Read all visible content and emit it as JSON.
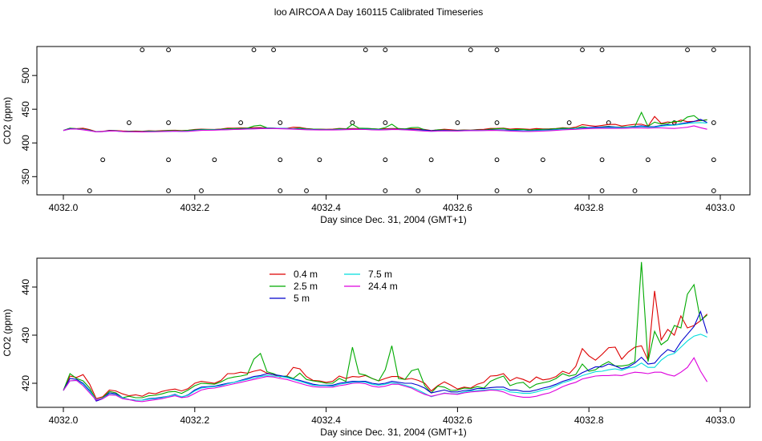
{
  "title": "loo AIRCOA A  Day 160115  Calibrated Timeseries",
  "colors": {
    "0.4 m": "#dd0000",
    "2.5 m": "#00aa00",
    "5 m": "#0000cc",
    "7.5 m": "#00dddd",
    "24.4 m": "#dd00dd"
  },
  "chart_data": [
    {
      "type": "line",
      "panel": "top",
      "xlabel": "Day since Dec. 31, 2004 (GMT+1)",
      "ylabel": "CO2 (ppm)",
      "xlim": [
        4032.0,
        4033.0
      ],
      "ylim": [
        323,
        543
      ],
      "x_ticks": [
        "4032.0",
        "4032.2",
        "4032.4",
        "4032.6",
        "4032.8",
        "4033.0"
      ],
      "y_ticks": [
        "350",
        "400",
        "450",
        "500"
      ],
      "markers": {
        "y538": [
          4032.12,
          4032.16,
          4032.29,
          4032.32,
          4032.46,
          4032.49,
          4032.62,
          4032.66,
          4032.79,
          4032.82,
          4032.95,
          4032.99
        ],
        "y430": [
          4032.1,
          4032.16,
          4032.27,
          4032.33,
          4032.44,
          4032.49,
          4032.6,
          4032.66,
          4032.77,
          4032.83,
          4032.93,
          4032.99
        ],
        "y375": [
          4032.06,
          4032.16,
          4032.23,
          4032.33,
          4032.39,
          4032.49,
          4032.56,
          4032.66,
          4032.73,
          4032.82,
          4032.89,
          4032.99
        ],
        "y329": [
          4032.04,
          4032.16,
          4032.21,
          4032.33,
          4032.37,
          4032.49,
          4032.54,
          4032.66,
          4032.71,
          4032.82,
          4032.87,
          4032.99
        ]
      }
    },
    {
      "type": "line",
      "panel": "bottom",
      "xlabel": "Day since Dec. 31, 2004 (GMT+1)",
      "ylabel": "CO2 (ppm)",
      "xlim": [
        4032.0,
        4033.0
      ],
      "ylim": [
        415,
        446
      ],
      "x_ticks": [
        "4032.0",
        "4032.2",
        "4032.4",
        "4032.6",
        "4032.8",
        "4033.0"
      ],
      "y_ticks": [
        "420",
        "430",
        "440"
      ],
      "legend_position": "top-left",
      "x": [
        4032.0,
        4032.01,
        4032.02,
        4032.03,
        4032.04,
        4032.05,
        4032.06,
        4032.07,
        4032.08,
        4032.09,
        4032.1,
        4032.11,
        4032.12,
        4032.13,
        4032.14,
        4032.15,
        4032.16,
        4032.17,
        4032.18,
        4032.19,
        4032.2,
        4032.21,
        4032.22,
        4032.23,
        4032.24,
        4032.25,
        4032.26,
        4032.27,
        4032.28,
        4032.29,
        4032.3,
        4032.31,
        4032.32,
        4032.33,
        4032.34,
        4032.35,
        4032.36,
        4032.37,
        4032.38,
        4032.39,
        4032.4,
        4032.41,
        4032.42,
        4032.43,
        4032.44,
        4032.45,
        4032.46,
        4032.47,
        4032.48,
        4032.49,
        4032.5,
        4032.51,
        4032.52,
        4032.53,
        4032.54,
        4032.55,
        4032.56,
        4032.57,
        4032.58,
        4032.59,
        4032.6,
        4032.61,
        4032.62,
        4032.63,
        4032.64,
        4032.65,
        4032.66,
        4032.67,
        4032.68,
        4032.69,
        4032.7,
        4032.71,
        4032.72,
        4032.73,
        4032.74,
        4032.75,
        4032.76,
        4032.77,
        4032.78,
        4032.79,
        4032.8,
        4032.81,
        4032.82,
        4032.83,
        4032.84,
        4032.85,
        4032.86,
        4032.87,
        4032.88,
        4032.89,
        4032.9,
        4032.91,
        4032.92,
        4032.93,
        4032.94,
        4032.95,
        4032.96,
        4032.97,
        4032.98
      ],
      "series": [
        {
          "name": "0.4 m",
          "values": [
            418.5,
            421.5,
            421.2,
            421.8,
            419.8,
            416.8,
            417.2,
            418.6,
            418.4,
            417.8,
            417.4,
            417.6,
            417.3,
            418.0,
            417.8,
            418.3,
            418.6,
            418.8,
            418.4,
            418.9,
            420.0,
            420.4,
            420.2,
            420.0,
            420.6,
            422.0,
            422.0,
            422.3,
            422.1,
            422.5,
            422.8,
            422.1,
            421.8,
            421.3,
            421.5,
            423.3,
            423.0,
            421.4,
            420.6,
            420.5,
            420.2,
            420.4,
            421.5,
            421.0,
            421.4,
            421.3,
            421.6,
            421.0,
            420.5,
            421.0,
            421.4,
            421.4,
            420.8,
            421.0,
            420.6,
            420.0,
            418.4,
            419.5,
            420.3,
            419.6,
            418.8,
            419.2,
            419.0,
            419.8,
            420.2,
            421.5,
            421.6,
            422.0,
            420.5,
            421.2,
            420.8,
            420.2,
            421.3,
            420.7,
            420.9,
            421.4,
            422.5,
            422.0,
            423.5,
            427.2,
            425.7,
            424.8,
            426.0,
            427.4,
            427.5,
            425.0,
            426.5,
            427.5,
            427.8,
            424.8,
            439.2,
            429.0,
            431.2,
            430.0,
            434.0,
            431.5,
            432.0,
            433.0,
            434.4
          ]
        },
        {
          "name": "2.5 m",
          "values": [
            418.5,
            422.0,
            421.0,
            420.5,
            419.0,
            416.5,
            417.0,
            418.3,
            418.0,
            417.0,
            417.3,
            417.0,
            417.0,
            417.4,
            417.5,
            417.8,
            418.2,
            418.3,
            417.9,
            418.6,
            419.5,
            420.0,
            419.9,
            419.8,
            420.3,
            421.0,
            421.3,
            421.5,
            421.8,
            425.0,
            426.2,
            422.4,
            422.0,
            421.4,
            421.5,
            421.0,
            422.1,
            420.8,
            420.5,
            420.3,
            420.0,
            420.0,
            421.0,
            420.4,
            427.5,
            422.0,
            421.7,
            421.0,
            420.5,
            422.8,
            427.8,
            421.0,
            420.8,
            422.6,
            423.0,
            419.5,
            418.0,
            419.4,
            419.2,
            418.5,
            418.6,
            419.0,
            418.9,
            419.3,
            419.0,
            420.4,
            421.0,
            421.5,
            419.5,
            420.0,
            420.2,
            419.0,
            419.8,
            420.1,
            420.4,
            421.0,
            422.0,
            421.5,
            421.8,
            424.0,
            422.5,
            422.8,
            423.8,
            424.5,
            423.6,
            423.6,
            423.8,
            424.5,
            445.2,
            424.5,
            430.8,
            428.0,
            429.0,
            432.0,
            431.5,
            438.5,
            440.5,
            433.0,
            434.2
          ]
        },
        {
          "name": "5 m",
          "values": [
            418.5,
            421.0,
            420.8,
            420.0,
            418.5,
            416.3,
            416.8,
            418.0,
            417.8,
            417.0,
            416.6,
            416.5,
            416.5,
            416.8,
            416.9,
            417.1,
            417.3,
            417.7,
            417.1,
            417.6,
            418.6,
            419.2,
            419.3,
            419.4,
            419.7,
            420.0,
            420.2,
            420.6,
            421.0,
            421.4,
            421.6,
            422.0,
            421.8,
            421.6,
            421.3,
            420.9,
            420.6,
            420.2,
            419.8,
            419.6,
            419.6,
            419.6,
            420.0,
            420.2,
            420.4,
            420.4,
            420.4,
            420.0,
            419.8,
            420.0,
            420.4,
            420.2,
            420.0,
            420.0,
            419.6,
            419.0,
            418.0,
            418.3,
            418.6,
            418.2,
            418.2,
            418.5,
            418.6,
            418.9,
            418.9,
            419.1,
            419.2,
            419.2,
            418.6,
            418.6,
            418.3,
            418.3,
            418.6,
            419.0,
            419.3,
            419.8,
            420.4,
            420.8,
            421.4,
            422.2,
            422.8,
            423.4,
            423.4,
            424.0,
            423.6,
            423.0,
            423.4,
            424.2,
            425.4,
            424.0,
            424.2,
            425.8,
            427.0,
            426.5,
            428.6,
            430.2,
            431.8,
            434.9,
            430.4
          ]
        },
        {
          "name": "7.5 m",
          "values": [
            418.5,
            420.5,
            420.6,
            419.8,
            418.3,
            416.6,
            416.9,
            417.7,
            417.6,
            417.0,
            416.6,
            416.5,
            416.5,
            416.7,
            416.8,
            417.0,
            417.3,
            417.6,
            417.2,
            417.5,
            418.4,
            419.0,
            419.2,
            419.3,
            419.5,
            419.9,
            420.2,
            420.5,
            420.8,
            421.1,
            421.4,
            421.6,
            421.5,
            421.4,
            421.2,
            420.8,
            420.4,
            420.0,
            419.6,
            419.5,
            419.5,
            419.4,
            419.8,
            420.0,
            420.2,
            420.3,
            420.2,
            419.8,
            419.6,
            419.8,
            420.1,
            419.9,
            419.6,
            419.2,
            418.6,
            417.9,
            417.2,
            417.6,
            418.0,
            417.8,
            417.8,
            418.2,
            418.4,
            418.5,
            418.6,
            418.7,
            418.7,
            418.7,
            418.2,
            418.1,
            417.9,
            417.9,
            418.2,
            418.6,
            418.9,
            419.5,
            420.1,
            420.5,
            421.0,
            421.6,
            422.0,
            422.4,
            422.5,
            422.8,
            423.0,
            422.7,
            423.2,
            423.4,
            424.2,
            423.3,
            423.3,
            424.8,
            425.8,
            426.2,
            427.5,
            428.8,
            429.8,
            430.2,
            429.6
          ]
        },
        {
          "name": "24.4 m",
          "values": [
            418.5,
            420.5,
            420.6,
            419.5,
            418.0,
            416.5,
            416.8,
            417.6,
            417.5,
            416.8,
            416.6,
            416.3,
            416.2,
            416.4,
            416.6,
            416.8,
            417.1,
            417.4,
            417.0,
            417.2,
            417.9,
            418.6,
            418.9,
            419.0,
            419.3,
            419.6,
            419.9,
            420.2,
            420.5,
            420.8,
            421.1,
            421.4,
            421.3,
            421.0,
            420.8,
            420.4,
            420.0,
            419.6,
            419.3,
            419.2,
            419.2,
            419.2,
            419.5,
            419.7,
            420.0,
            420.1,
            419.9,
            419.4,
            419.2,
            419.4,
            419.8,
            419.8,
            419.4,
            419.0,
            418.3,
            417.7,
            417.3,
            417.6,
            417.9,
            417.8,
            417.7,
            418.0,
            418.2,
            418.3,
            418.4,
            418.6,
            418.5,
            418.2,
            417.6,
            417.3,
            417.1,
            417.1,
            417.3,
            417.7,
            418.0,
            418.6,
            419.3,
            419.8,
            420.2,
            420.9,
            421.2,
            421.5,
            421.6,
            421.6,
            421.7,
            421.6,
            422.0,
            422.3,
            422.2,
            422.0,
            422.3,
            422.3,
            421.8,
            421.5,
            422.3,
            423.3,
            425.3,
            422.5,
            420.3
          ]
        }
      ]
    }
  ]
}
